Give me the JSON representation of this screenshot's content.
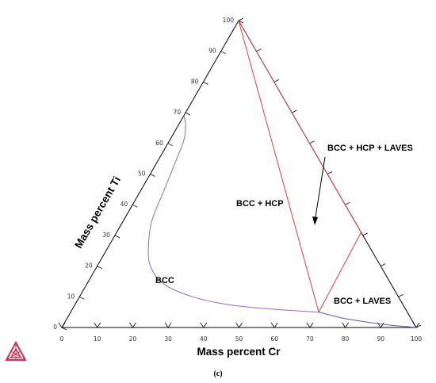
{
  "diagram": {
    "type": "ternary-phase-diagram",
    "axes": {
      "left": {
        "label": "Mass percent Ti",
        "ticks": [
          "0",
          "10",
          "20",
          "30",
          "40",
          "50",
          "60",
          "70",
          "80",
          "90",
          "100"
        ]
      },
      "bottom": {
        "label": "Mass percent Cr",
        "ticks": [
          "0",
          "10",
          "20",
          "30",
          "40",
          "50",
          "60",
          "70",
          "80",
          "90",
          "100"
        ]
      }
    },
    "regions": [
      {
        "id": "bcc",
        "label": "BCC"
      },
      {
        "id": "bcc-hcp",
        "label": "BCC + HCP"
      },
      {
        "id": "bcc-hcp-laves",
        "label": "BCC + HCP + LAVES"
      },
      {
        "id": "bcc-laves",
        "label": "BCC + LAVES"
      }
    ],
    "phase_boundary_points": [
      {
        "cr": 0,
        "ti": 69
      },
      {
        "cr": 2,
        "ti": 66
      },
      {
        "cr": 4,
        "ti": 61
      },
      {
        "cr": 5,
        "ti": 55
      },
      {
        "cr": 6.5,
        "ti": 45
      },
      {
        "cr": 8,
        "ti": 35
      },
      {
        "cr": 11,
        "ti": 27
      },
      {
        "cr": 15,
        "ti": 20
      },
      {
        "cr": 22,
        "ti": 14
      },
      {
        "cr": 32,
        "ti": 10
      },
      {
        "cr": 43,
        "ti": 7.5
      },
      {
        "cr": 56,
        "ti": 6
      },
      {
        "cr": 70,
        "ti": 5
      }
    ],
    "boundary_tail_points": [
      {
        "cr": 70,
        "ti": 5
      },
      {
        "cr": 78,
        "ti": 3
      },
      {
        "cr": 85,
        "ti": 1.8
      },
      {
        "cr": 92,
        "ti": 0.8
      },
      {
        "cr": 97,
        "ti": 0.3
      },
      {
        "cr": 100,
        "ti": 0
      }
    ],
    "tie_lines": [
      {
        "from": {
          "cr": 0,
          "ti": 100
        },
        "to": {
          "cr": 70,
          "ti": 5
        }
      },
      {
        "from": {
          "cr": 70,
          "ti": 5
        },
        "to": {
          "cr": 69,
          "ti": 31
        }
      },
      {
        "from": {
          "cr": 0,
          "ti": 100
        },
        "to": {
          "cr": 69,
          "ti": 31
        }
      }
    ],
    "colors": {
      "boundary": "#9966cc",
      "tail": "#5b5bb8",
      "tie_line": "#e04040",
      "axis": "#000000"
    },
    "caption": "(c)",
    "logo_icon": "thermo-calc-logo-icon"
  }
}
